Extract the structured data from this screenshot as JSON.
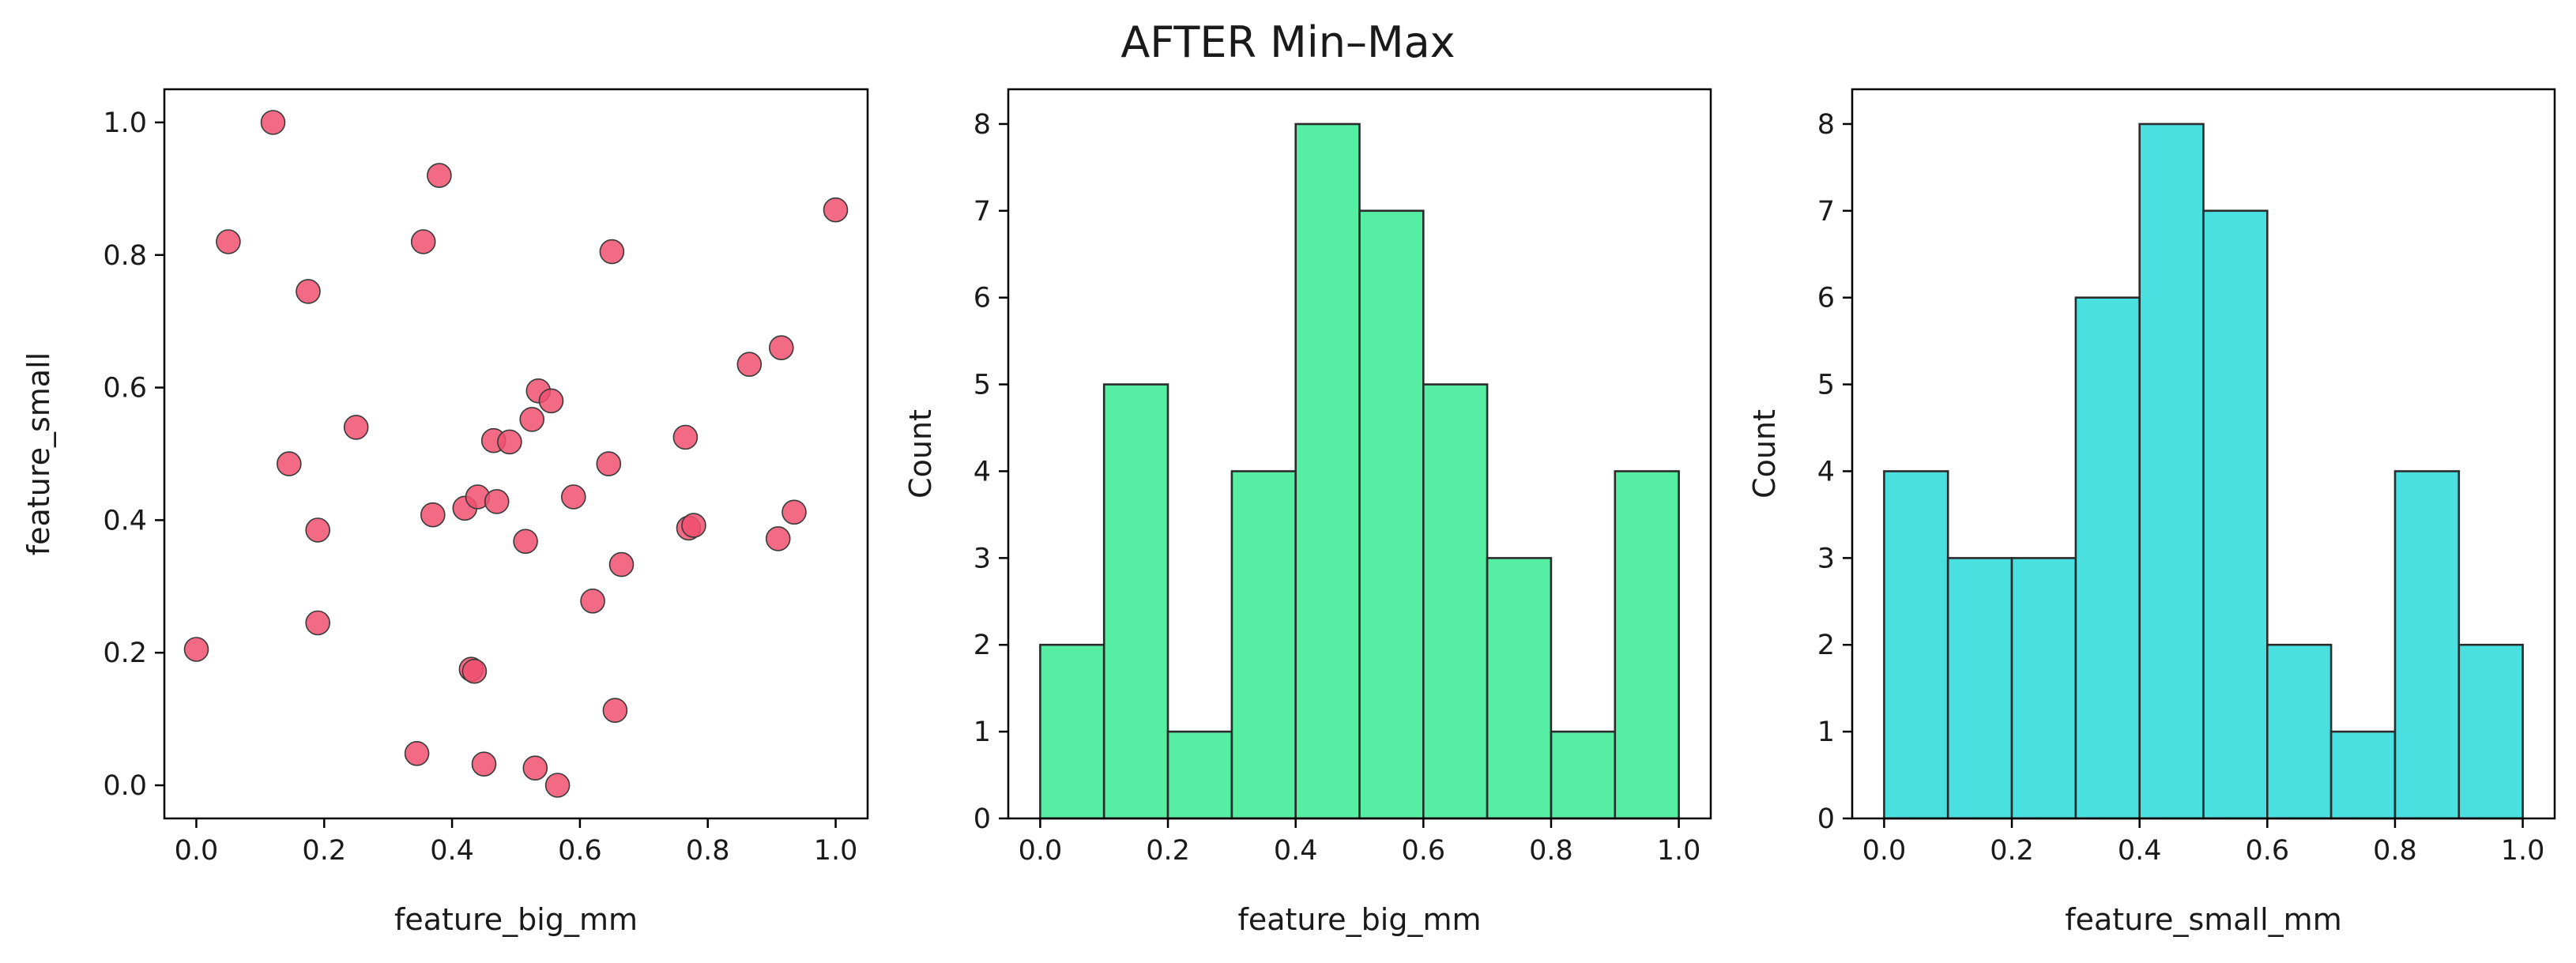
{
  "figure": {
    "title": "AFTER Min–Max"
  },
  "chart_data": [
    {
      "type": "scatter",
      "xlabel": "feature_big_mm",
      "ylabel": "feature_small",
      "xlim": [
        -0.05,
        1.05
      ],
      "ylim": [
        -0.05,
        1.05
      ],
      "xticks": [
        "0.0",
        "0.2",
        "0.4",
        "0.6",
        "0.8",
        "1.0"
      ],
      "yticks": [
        "0.0",
        "0.2",
        "0.4",
        "0.6",
        "0.8",
        "1.0"
      ],
      "color": "#f0506e",
      "points": [
        {
          "x": 0.0,
          "y": 0.205
        },
        {
          "x": 0.05,
          "y": 0.82
        },
        {
          "x": 0.12,
          "y": 1.0
        },
        {
          "x": 0.145,
          "y": 0.485
        },
        {
          "x": 0.175,
          "y": 0.745
        },
        {
          "x": 0.19,
          "y": 0.385
        },
        {
          "x": 0.19,
          "y": 0.245
        },
        {
          "x": 0.25,
          "y": 0.54
        },
        {
          "x": 0.345,
          "y": 0.048
        },
        {
          "x": 0.355,
          "y": 0.82
        },
        {
          "x": 0.37,
          "y": 0.408
        },
        {
          "x": 0.38,
          "y": 0.92
        },
        {
          "x": 0.42,
          "y": 0.418
        },
        {
          "x": 0.43,
          "y": 0.175
        },
        {
          "x": 0.435,
          "y": 0.172
        },
        {
          "x": 0.44,
          "y": 0.435
        },
        {
          "x": 0.45,
          "y": 0.032
        },
        {
          "x": 0.465,
          "y": 0.52
        },
        {
          "x": 0.47,
          "y": 0.428
        },
        {
          "x": 0.49,
          "y": 0.518
        },
        {
          "x": 0.515,
          "y": 0.368
        },
        {
          "x": 0.525,
          "y": 0.552
        },
        {
          "x": 0.53,
          "y": 0.026
        },
        {
          "x": 0.535,
          "y": 0.595
        },
        {
          "x": 0.555,
          "y": 0.58
        },
        {
          "x": 0.565,
          "y": 0.0
        },
        {
          "x": 0.59,
          "y": 0.435
        },
        {
          "x": 0.62,
          "y": 0.278
        },
        {
          "x": 0.645,
          "y": 0.485
        },
        {
          "x": 0.65,
          "y": 0.805
        },
        {
          "x": 0.655,
          "y": 0.113
        },
        {
          "x": 0.665,
          "y": 0.333
        },
        {
          "x": 0.765,
          "y": 0.525
        },
        {
          "x": 0.77,
          "y": 0.388
        },
        {
          "x": 0.778,
          "y": 0.392
        },
        {
          "x": 0.865,
          "y": 0.635
        },
        {
          "x": 0.91,
          "y": 0.372
        },
        {
          "x": 0.915,
          "y": 0.66
        },
        {
          "x": 0.935,
          "y": 0.412
        },
        {
          "x": 1.0,
          "y": 0.868
        }
      ]
    },
    {
      "type": "bar",
      "subtype": "histogram",
      "xlabel": "feature_big_mm",
      "ylabel": "Count",
      "xlim": [
        -0.05,
        1.05
      ],
      "ylim": [
        0,
        8.4
      ],
      "xticks": [
        "0.0",
        "0.2",
        "0.4",
        "0.6",
        "0.8",
        "1.0"
      ],
      "yticks": [
        "0",
        "1",
        "2",
        "3",
        "4",
        "5",
        "6",
        "7",
        "8"
      ],
      "color": "#55eea3",
      "bin_edges": [
        0.0,
        0.1,
        0.2,
        0.3,
        0.4,
        0.5,
        0.6,
        0.7,
        0.8,
        0.9,
        1.0
      ],
      "values": [
        2,
        5,
        1,
        4,
        8,
        7,
        5,
        3,
        1,
        4
      ]
    },
    {
      "type": "bar",
      "subtype": "histogram",
      "xlabel": "feature_small_mm",
      "ylabel": "Count",
      "xlim": [
        -0.05,
        1.05
      ],
      "ylim": [
        0,
        8.4
      ],
      "xticks": [
        "0.0",
        "0.2",
        "0.4",
        "0.6",
        "0.8",
        "1.0"
      ],
      "yticks": [
        "0",
        "1",
        "2",
        "3",
        "4",
        "5",
        "6",
        "7",
        "8"
      ],
      "color": "#4ae0e0",
      "bin_edges": [
        0.0,
        0.1,
        0.2,
        0.3,
        0.4,
        0.5,
        0.6,
        0.7,
        0.8,
        0.9,
        1.0
      ],
      "values": [
        4,
        3,
        3,
        6,
        8,
        7,
        2,
        1,
        4,
        2
      ]
    }
  ]
}
